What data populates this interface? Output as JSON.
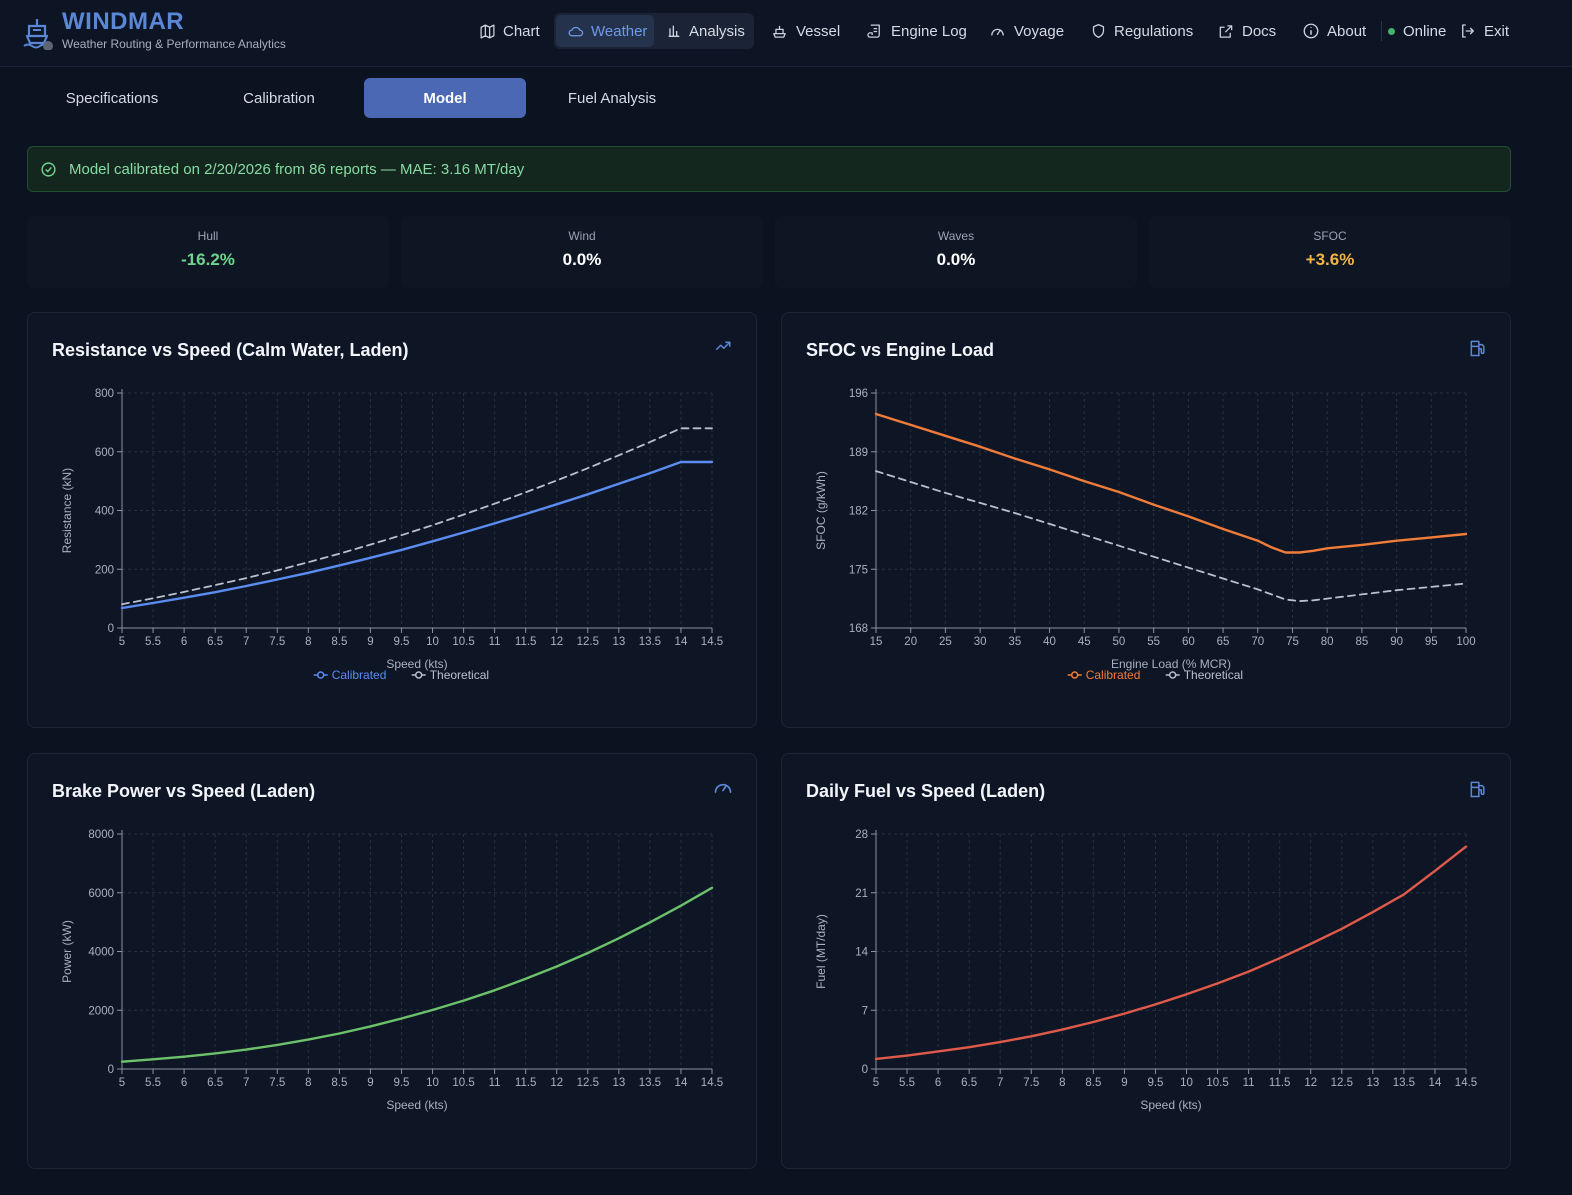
{
  "app": {
    "title": "WINDMAR",
    "subtitle": "Weather Routing & Performance Analytics"
  },
  "nav": {
    "chart": "Chart",
    "weather": "Weather",
    "analysis": "Analysis",
    "vessel": "Vessel",
    "engine_log": "Engine Log",
    "voyage": "Voyage",
    "regulations": "Regulations",
    "docs": "Docs",
    "about": "About",
    "status": "Online",
    "exit": "Exit"
  },
  "tabs": [
    "Specifications",
    "Calibration",
    "Model",
    "Fuel Analysis"
  ],
  "active_tab": "Model",
  "banner": {
    "text": "Model calibrated on 2/20/2026 from 86 reports — MAE: 3.16 MT/day"
  },
  "stats": [
    {
      "label": "Hull",
      "value": "-16.2%",
      "color": "#6fd48f"
    },
    {
      "label": "Wind",
      "value": "0.0%",
      "color": "#ffffff"
    },
    {
      "label": "Waves",
      "value": "0.0%",
      "color": "#ffffff"
    },
    {
      "label": "SFOC",
      "value": "+3.6%",
      "color": "#f3b442"
    }
  ],
  "colors": {
    "accent": "#4a68b3",
    "calibrated_blue": "#5b8cf0",
    "calibrated_orange": "#f07c3a",
    "power_green": "#6cc26a",
    "fuel_red": "#e05a4a",
    "theoretical": "#b8c0cc"
  },
  "chart_data": [
    {
      "type": "line",
      "title": "Resistance vs Speed (Calm Water, Laden)",
      "icon": "trending-up-icon",
      "xlabel": "Speed (kts)",
      "ylabel": "Resistance (kN)",
      "xlim": [
        5,
        14.5
      ],
      "ylim": [
        0,
        800
      ],
      "xticks": [
        "5",
        "5.5",
        "6",
        "6.5",
        "7",
        "7.5",
        "8",
        "8.5",
        "9",
        "9.5",
        "10",
        "10.5",
        "11",
        "11.5",
        "12",
        "12.5",
        "13",
        "13.5",
        "14",
        "14.5"
      ],
      "yticks": [
        "0",
        "200",
        "400",
        "600",
        "800"
      ],
      "legend": "bottom",
      "grid": true,
      "series": [
        {
          "name": "Calibrated",
          "color": "#5b8cf0",
          "dashed": false,
          "x": [
            5,
            5.5,
            6,
            6.5,
            7,
            7.5,
            8,
            8.5,
            9,
            9.5,
            10,
            10.5,
            11,
            11.5,
            12,
            12.5,
            13,
            13.5,
            14,
            14.5
          ],
          "y": [
            68,
            85,
            103,
            122,
            143,
            165,
            188,
            213,
            239,
            266,
            295,
            325,
            356,
            388,
            421,
            455,
            491,
            527,
            565,
            565
          ]
        },
        {
          "name": "Theoretical",
          "color": "#b8c0cc",
          "dashed": true,
          "x": [
            5,
            5.5,
            6,
            6.5,
            7,
            7.5,
            8,
            8.5,
            9,
            9.5,
            10,
            10.5,
            11,
            11.5,
            12,
            12.5,
            13,
            13.5,
            14,
            14.5
          ],
          "y": [
            81,
            101,
            123,
            146,
            170,
            196,
            224,
            253,
            284,
            316,
            350,
            386,
            423,
            462,
            502,
            544,
            588,
            633,
            680,
            680
          ]
        }
      ]
    },
    {
      "type": "line",
      "title": "SFOC vs Engine Load",
      "icon": "fuel-pump-icon",
      "xlabel": "Engine Load (% MCR)",
      "ylabel": "SFOC (g/kWh)",
      "xlim": [
        15,
        100
      ],
      "ylim": [
        168,
        196
      ],
      "xticks": [
        "15",
        "20",
        "25",
        "30",
        "35",
        "40",
        "45",
        "50",
        "55",
        "60",
        "65",
        "70",
        "75",
        "80",
        "85",
        "90",
        "95",
        "100"
      ],
      "yticks": [
        "168",
        "175",
        "182",
        "189",
        "196"
      ],
      "legend": "bottom",
      "grid": true,
      "series": [
        {
          "name": "Calibrated",
          "color": "#f07c3a",
          "dashed": false,
          "x": [
            15,
            20,
            25,
            30,
            35,
            40,
            45,
            50,
            55,
            60,
            65,
            70,
            72,
            74,
            76,
            78,
            80,
            85,
            90,
            95,
            100
          ],
          "y": [
            193.5,
            192.2,
            190.9,
            189.6,
            188.2,
            186.9,
            185.5,
            184.2,
            182.7,
            181.3,
            179.8,
            178.4,
            177.6,
            177.0,
            177.0,
            177.2,
            177.5,
            177.9,
            178.4,
            178.8,
            179.2
          ]
        },
        {
          "name": "Theoretical",
          "color": "#b8c0cc",
          "dashed": true,
          "x": [
            15,
            20,
            25,
            30,
            35,
            40,
            45,
            50,
            55,
            60,
            65,
            70,
            72,
            74,
            76,
            78,
            80,
            85,
            90,
            95,
            100
          ],
          "y": [
            186.7,
            185.4,
            184.1,
            182.9,
            181.7,
            180.4,
            179.1,
            177.8,
            176.5,
            175.2,
            173.9,
            172.6,
            172.0,
            171.4,
            171.2,
            171.3,
            171.5,
            172.0,
            172.5,
            172.9,
            173.3
          ]
        }
      ]
    },
    {
      "type": "line",
      "title": "Brake Power vs Speed (Laden)",
      "icon": "gauge-icon",
      "xlabel": "Speed (kts)",
      "ylabel": "Power (kW)",
      "xlim": [
        5,
        14.5
      ],
      "ylim": [
        0,
        8000
      ],
      "xticks": [
        "5",
        "5.5",
        "6",
        "6.5",
        "7",
        "7.5",
        "8",
        "8.5",
        "9",
        "9.5",
        "10",
        "10.5",
        "11",
        "11.5",
        "12",
        "12.5",
        "13",
        "13.5",
        "14",
        "14.5"
      ],
      "yticks": [
        "0",
        "2000",
        "4000",
        "6000",
        "8000"
      ],
      "grid": true,
      "series": [
        {
          "name": "",
          "color": "#6cc26a",
          "dashed": false,
          "x": [
            5,
            5.5,
            6,
            6.5,
            7,
            7.5,
            8,
            8.5,
            9,
            9.5,
            10,
            10.5,
            11,
            11.5,
            12,
            12.5,
            13,
            13.5,
            14,
            14.5
          ],
          "y": [
            250,
            330,
            420,
            530,
            660,
            820,
            1000,
            1210,
            1450,
            1720,
            2010,
            2330,
            2680,
            3070,
            3490,
            3950,
            4450,
            4990,
            5560,
            6170
          ]
        }
      ]
    },
    {
      "type": "line",
      "title": "Daily Fuel vs Speed (Laden)",
      "icon": "fuel-pump-icon",
      "xlabel": "Speed (kts)",
      "ylabel": "Fuel (MT/day)",
      "xlim": [
        5,
        14.5
      ],
      "ylim": [
        0,
        28
      ],
      "xticks": [
        "5",
        "5.5",
        "6",
        "6.5",
        "7",
        "7.5",
        "8",
        "8.5",
        "9",
        "9.5",
        "10",
        "10.5",
        "11",
        "11.5",
        "12",
        "12.5",
        "13",
        "13.5",
        "14",
        "14.5"
      ],
      "yticks": [
        "0",
        "7",
        "14",
        "21",
        "28"
      ],
      "grid": true,
      "series": [
        {
          "name": "",
          "color": "#e05a4a",
          "dashed": false,
          "x": [
            5,
            5.5,
            6,
            6.5,
            7,
            7.5,
            8,
            8.5,
            9,
            9.5,
            10,
            10.5,
            11,
            11.5,
            12,
            12.5,
            13,
            13.5,
            14,
            14.5
          ],
          "y": [
            1.2,
            1.6,
            2.1,
            2.6,
            3.2,
            3.9,
            4.7,
            5.6,
            6.6,
            7.7,
            8.9,
            10.2,
            11.6,
            13.2,
            14.9,
            16.7,
            18.7,
            20.8,
            23.6,
            26.5
          ]
        }
      ]
    }
  ]
}
